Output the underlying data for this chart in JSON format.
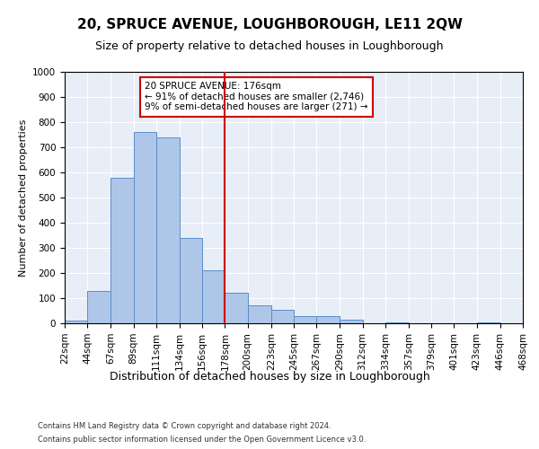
{
  "title": "20, SPRUCE AVENUE, LOUGHBOROUGH, LE11 2QW",
  "subtitle": "Size of property relative to detached houses in Loughborough",
  "xlabel": "Distribution of detached houses by size in Loughborough",
  "ylabel": "Number of detached properties",
  "bin_edges": [
    22,
    44,
    67,
    89,
    111,
    134,
    156,
    178,
    200,
    223,
    245,
    267,
    290,
    312,
    334,
    357,
    379,
    401,
    423,
    446,
    468
  ],
  "bar_heights": [
    10,
    130,
    580,
    760,
    740,
    340,
    210,
    120,
    70,
    55,
    30,
    30,
    15,
    0,
    5,
    0,
    0,
    0,
    5,
    0
  ],
  "bar_color": "#aec6e8",
  "bar_edge_color": "#5b8dc8",
  "vline_x": 178,
  "vline_color": "#cc0000",
  "annotation_box_text": "20 SPRUCE AVENUE: 176sqm\n← 91% of detached houses are smaller (2,746)\n9% of semi-detached houses are larger (271) →",
  "ylim": [
    0,
    1000
  ],
  "yticks": [
    0,
    100,
    200,
    300,
    400,
    500,
    600,
    700,
    800,
    900,
    1000
  ],
  "footer_line1": "Contains HM Land Registry data © Crown copyright and database right 2024.",
  "footer_line2": "Contains public sector information licensed under the Open Government Licence v3.0.",
  "bg_color": "#e8eef7",
  "title_fontsize": 11,
  "subtitle_fontsize": 9,
  "tick_label_fontsize": 7.5
}
